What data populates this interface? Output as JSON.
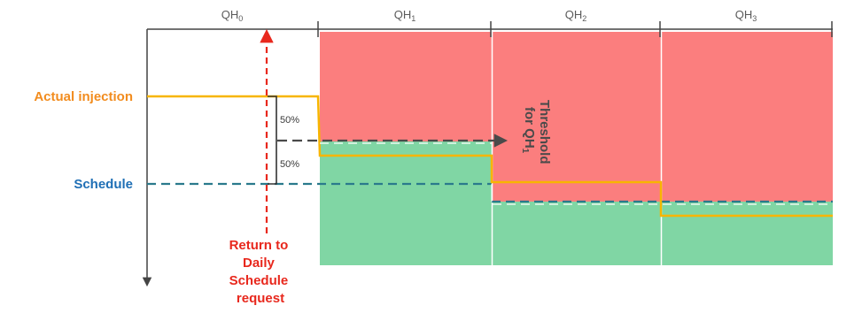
{
  "header": {
    "periods": [
      {
        "name": "QH",
        "sub": "0"
      },
      {
        "name": "QH",
        "sub": "1"
      },
      {
        "name": "QH",
        "sub": "2"
      },
      {
        "name": "QH",
        "sub": "3"
      }
    ]
  },
  "labels": {
    "actual_injection": "Actual injection",
    "schedule": "Schedule",
    "upper_half": "50%",
    "lower_half": "50%",
    "threshold_line1": "Threshold",
    "threshold_line2": "for QH",
    "threshold_sub": "1",
    "return_request": [
      "Return to",
      "Daily",
      "Schedule",
      "request"
    ]
  },
  "colors": {
    "actual_injection": "#f7b500",
    "actual_injection_label": "#f28c1e",
    "schedule": "#2a7a8c",
    "schedule_label": "#1f6fb5",
    "above_threshold_zone": "#fb7e7e",
    "below_threshold_zone": "#80d6a4",
    "return_request": "#e8281d",
    "threshold_arrow": "#4a4a4a",
    "axis": "#444444"
  }
}
